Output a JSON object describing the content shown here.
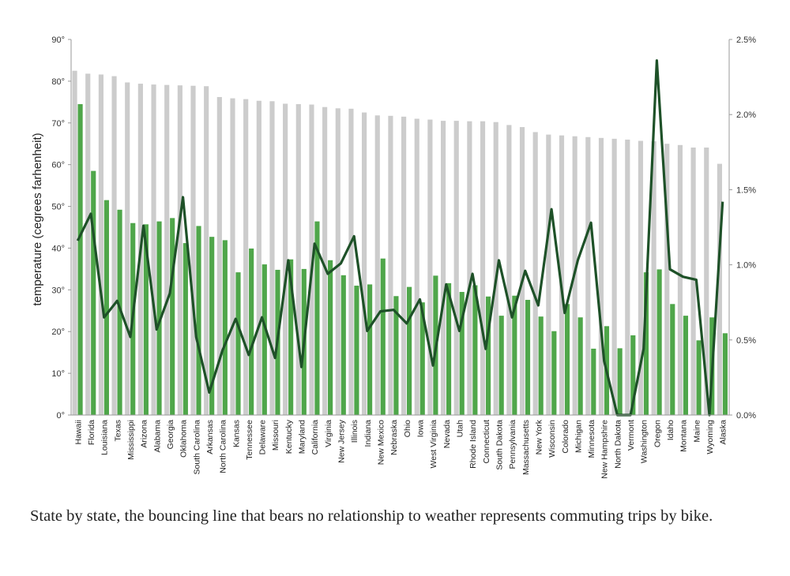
{
  "caption": "State by state, the bouncing line that bears no relationship to weather represents commuting trips by bike.",
  "chart_data": {
    "type": "bar+line",
    "ylabel": "temperature (cegrees farhenheit)",
    "ylim": [
      0,
      90
    ],
    "y2lim": [
      0,
      2.5
    ],
    "yticks": [
      "0°",
      "10°",
      "20°",
      "30°",
      "40°",
      "50°",
      "60°",
      "70°",
      "80°",
      "90°"
    ],
    "y2ticks": [
      "0.0%",
      "0.5%",
      "1.0%",
      "1.5%",
      "2.0%",
      "2.5%"
    ],
    "colors": {
      "high_bar": "#cccccc",
      "low_bar": "#4fa64a",
      "line": "#1e5128"
    },
    "categories": [
      "Hawaii",
      "Florida",
      "Louisiana",
      "Texas",
      "Mississippi",
      "Arizona",
      "Alabama",
      "Georgia",
      "Oklahoma",
      "South Carolina",
      "Arkansas",
      "North Carolina",
      "Kansas",
      "Tennessee",
      "Delaware",
      "Missouri",
      "Kentucky",
      "Maryland",
      "California",
      "Virginia",
      "New Jersey",
      "Illinois",
      "Indiana",
      "New Mexico",
      "Nebraska",
      "Ohio",
      "Iowa",
      "West Virginia",
      "Nevada",
      "Utah",
      "Rhode Island",
      "Connecticut",
      "South Dakota",
      "Pennsylvania",
      "Massachusetts",
      "New York",
      "Wisconsin",
      "Colorado",
      "Michigan",
      "Minnesota",
      "New Hampshire",
      "North Dakota",
      "Vermont",
      "Washington",
      "Oregon",
      "Idaho",
      "Montana",
      "Maine",
      "Wyoming",
      "Alaska"
    ],
    "series": [
      {
        "values": [
          82.5,
          81.8,
          81.6,
          81.2,
          79.7,
          79.4,
          79.2,
          79.1,
          79.0,
          78.9,
          78.8,
          76.2,
          75.9,
          75.7,
          75.3,
          75.2,
          74.6,
          74.5,
          74.4,
          73.8,
          73.5,
          73.4,
          72.5,
          71.8,
          71.7,
          71.5,
          71.0,
          70.8,
          70.5,
          70.5,
          70.4,
          70.4,
          70.2,
          69.5,
          69.0,
          67.8,
          67.2,
          67.0,
          66.8,
          66.6,
          66.4,
          66.2,
          66.0,
          65.7,
          65.6,
          65.0,
          64.7,
          64.1,
          64.1,
          60.2
        ]
      },
      {
        "values": [
          74.5,
          58.5,
          51.5,
          49.2,
          46.0,
          45.7,
          46.4,
          47.2,
          41.2,
          45.3,
          42.7,
          41.9,
          34.2,
          39.9,
          36.1,
          34.8,
          37.3,
          35.0,
          46.4,
          37.1,
          33.5,
          31.0,
          31.3,
          37.5,
          28.5,
          30.7,
          27.0,
          33.4,
          31.6,
          29.5,
          31.1,
          28.4,
          23.8,
          28.6,
          27.6,
          23.6,
          20.1,
          26.6,
          23.4,
          15.9,
          21.3,
          16.0,
          19.1,
          34.2,
          34.9,
          26.6,
          23.8,
          17.9,
          23.4,
          19.6
        ]
      },
      {
        "values": [
          1.16,
          1.34,
          0.65,
          0.76,
          0.52,
          1.26,
          0.57,
          0.81,
          1.45,
          0.52,
          0.15,
          0.43,
          0.64,
          0.4,
          0.65,
          0.38,
          1.03,
          0.32,
          1.14,
          0.94,
          1.01,
          1.19,
          0.56,
          0.69,
          0.7,
          0.61,
          0.77,
          0.33,
          0.87,
          0.56,
          0.94,
          0.44,
          1.03,
          0.65,
          0.96,
          0.73,
          1.37,
          0.68,
          1.03,
          1.28,
          0.36,
          0.0,
          0.0,
          0.44,
          2.36,
          0.97,
          0.92,
          0.9,
          0.0,
          1.42
        ]
      }
    ]
  }
}
